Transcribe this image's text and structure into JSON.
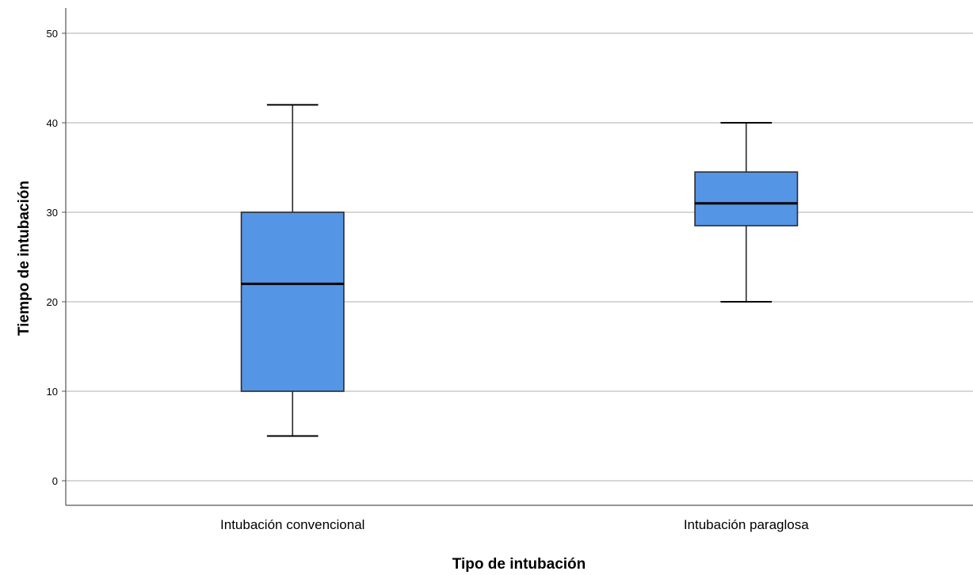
{
  "chart_data": {
    "type": "boxplot",
    "xlabel": "Tipo de intubación",
    "ylabel": "Tiempo de intubación",
    "ylim": [
      -3,
      53
    ],
    "yticks": [
      0,
      10,
      20,
      30,
      40,
      50
    ],
    "grid": true,
    "categories": [
      "Intubación convencional",
      "Intubación paraglosa"
    ],
    "boxes": [
      {
        "category": "Intubación convencional",
        "min": 5,
        "q1": 10,
        "median": 22,
        "q3": 30,
        "max": 42
      },
      {
        "category": "Intubación paraglosa",
        "min": 20,
        "q1": 28.5,
        "median": 31,
        "q3": 34.5,
        "max": 40
      }
    ],
    "colors": {
      "box_fill": "#5595E5",
      "box_stroke": "#2b2b2b",
      "grid": "#c8c8c8",
      "axis": "#555555"
    }
  }
}
